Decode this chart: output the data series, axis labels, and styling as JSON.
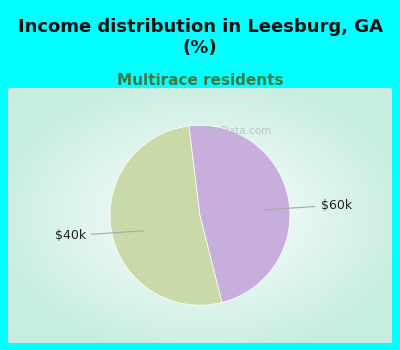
{
  "title": "Income distribution in Leesburg, GA\n(%)",
  "subtitle": "Multirace residents",
  "title_fontsize": 13,
  "subtitle_fontsize": 11,
  "title_color": "#111111",
  "subtitle_color": "#447744",
  "background_color": "#00ffff",
  "chart_bg_color": "#f0f8f0",
  "slices": [
    52,
    48
  ],
  "slice_colors": [
    "#c9d9a8",
    "#c8aedd"
  ],
  "startangle": 97,
  "watermark": "  City-Data.com",
  "label_40k": "$40k",
  "label_60k": "$60k",
  "label_fontsize": 9
}
